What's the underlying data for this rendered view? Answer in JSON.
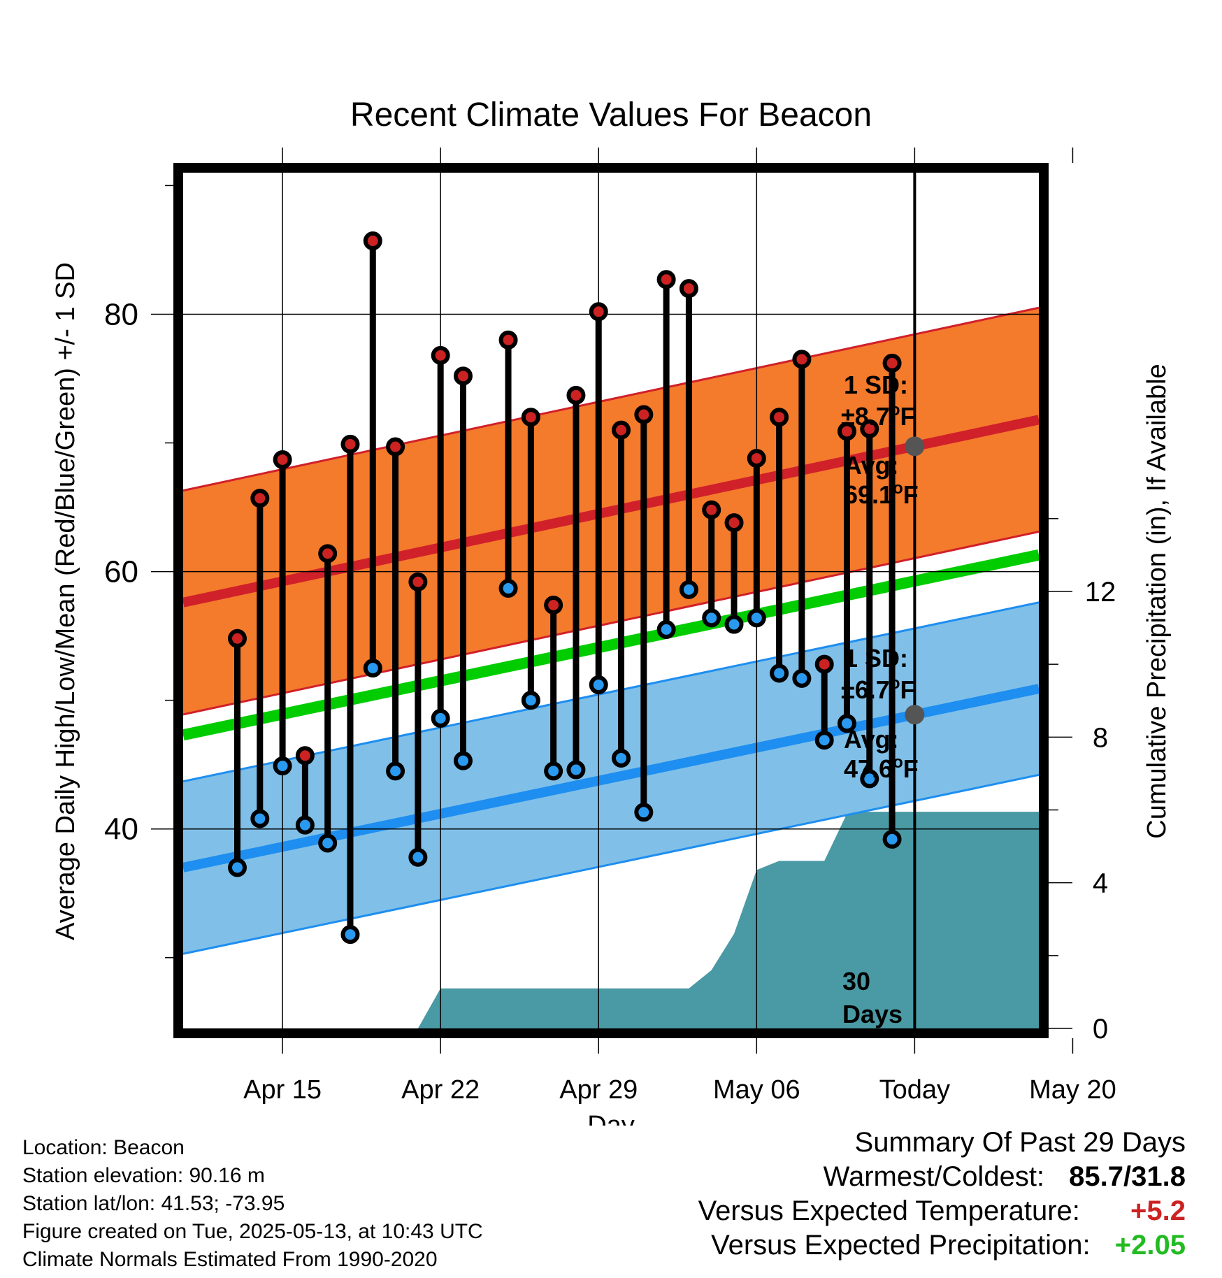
{
  "chart_data": {
    "type": "line",
    "title": "Recent Climate Values For Beacon",
    "xlabel": "Day",
    "ylabel": "Average Daily High/Low/Mean (Red/Blue/Green) +/- 1 SD",
    "y2label": "Cumulative Precipitation (in), If Available",
    "xlim": [
      -4.4,
      33.5
    ],
    "ylim": [
      24.5,
      91
    ],
    "y2lim": [
      0,
      23.5
    ],
    "xticks": [
      {
        "x": 0,
        "label": "Apr 15"
      },
      {
        "x": 7,
        "label": "Apr 22"
      },
      {
        "x": 14,
        "label": "Apr 29"
      },
      {
        "x": 21,
        "label": "May 06"
      },
      {
        "x": 28,
        "label": "Today"
      },
      {
        "x": 35,
        "label": "May 20"
      }
    ],
    "yticks": [
      40,
      60,
      80
    ],
    "y2ticks": [
      0,
      4,
      8,
      12
    ],
    "today_x": 28,
    "grid": true,
    "days": [
      -2,
      -1,
      0,
      1,
      2,
      3,
      4,
      5,
      6,
      7,
      8,
      10,
      11,
      12,
      13,
      14,
      15,
      16,
      17,
      18,
      19,
      20,
      21,
      22,
      23,
      24,
      25,
      26,
      27
    ],
    "highs": [
      54.8,
      65.7,
      68.7,
      45.7,
      61.4,
      69.9,
      85.7,
      69.7,
      59.2,
      76.8,
      75.2,
      78.0,
      72.0,
      57.4,
      73.7,
      80.2,
      71.0,
      72.2,
      82.7,
      82.0,
      64.8,
      63.8,
      68.8,
      72.0,
      76.5,
      52.8,
      70.9,
      71.1,
      76.2
    ],
    "lows": [
      37.0,
      40.8,
      44.9,
      40.3,
      38.9,
      31.8,
      52.5,
      44.5,
      37.8,
      48.6,
      45.3,
      58.7,
      50.0,
      44.5,
      44.6,
      51.2,
      45.5,
      41.3,
      55.5,
      58.6,
      56.4,
      55.9,
      56.4,
      52.1,
      51.7,
      46.9,
      48.2,
      43.9,
      39.2
    ],
    "normal_high": {
      "x": [
        -4.4,
        33.5
      ],
      "mean": [
        57.6,
        71.8
      ],
      "sd": 8.7
    },
    "normal_low": {
      "x": [
        -4.4,
        33.5
      ],
      "mean": [
        37.0,
        50.9
      ],
      "sd": 6.7
    },
    "normal_mean": {
      "x": [
        -4.4,
        33.5
      ],
      "values": [
        47.3,
        61.3
      ]
    },
    "precipitation": {
      "x": [
        6,
        7,
        13,
        14,
        18,
        19,
        20,
        21,
        22,
        23,
        24,
        25,
        26,
        27,
        28,
        33.5
      ],
      "values": [
        0,
        1.1,
        1.1,
        1.1,
        1.1,
        1.6,
        2.6,
        4.35,
        4.6,
        4.6,
        4.6,
        5.9,
        5.95,
        5.95,
        5.95,
        5.95
      ]
    },
    "annotations": {
      "high_sd_label": "1 SD:",
      "high_sd_value": "±8.7",
      "high_avg_label": "Avg:",
      "high_avg_value": "69.1",
      "low_sd_label": "1 SD:",
      "low_sd_value": "±6.7",
      "low_avg_label": "Avg:",
      "low_avg_value": "47.6",
      "unit_sup": "o",
      "unit_letter": "F",
      "period_number": "30",
      "period_word": "Days"
    },
    "colors": {
      "high_band": "#f47a2c",
      "high_line": "#d0202a",
      "low_band": "#80c0e8",
      "low_line": "#1e8ef0",
      "mean_line": "#00cc00",
      "precip": "#4a9aa5",
      "high_dot": "#cc2222",
      "low_dot": "#2a9af0",
      "avg_marker": "#555555",
      "annotation": "#555555"
    }
  },
  "footer": {
    "location": "Location: Beacon",
    "elevation": "Station elevation: 90.16 m",
    "latlon": "Station lat/lon: 41.53; -73.95",
    "created": "Figure created on Tue, 2025-05-13, at 10:43 UTC",
    "normals": "Climate Normals Estimated From 1990-2020"
  },
  "summary": {
    "heading": "Summary Of Past 29 Days",
    "warm_cold_label": "Warmest/Coldest:",
    "warm_cold_value": "85.7/31.8",
    "temp_label": "Versus Expected Temperature:",
    "temp_value": "+5.2",
    "temp_color": "#cc2222",
    "precip_label": "Versus Expected Precipitation:",
    "precip_value": "+2.05",
    "precip_color": "#22bb22"
  }
}
